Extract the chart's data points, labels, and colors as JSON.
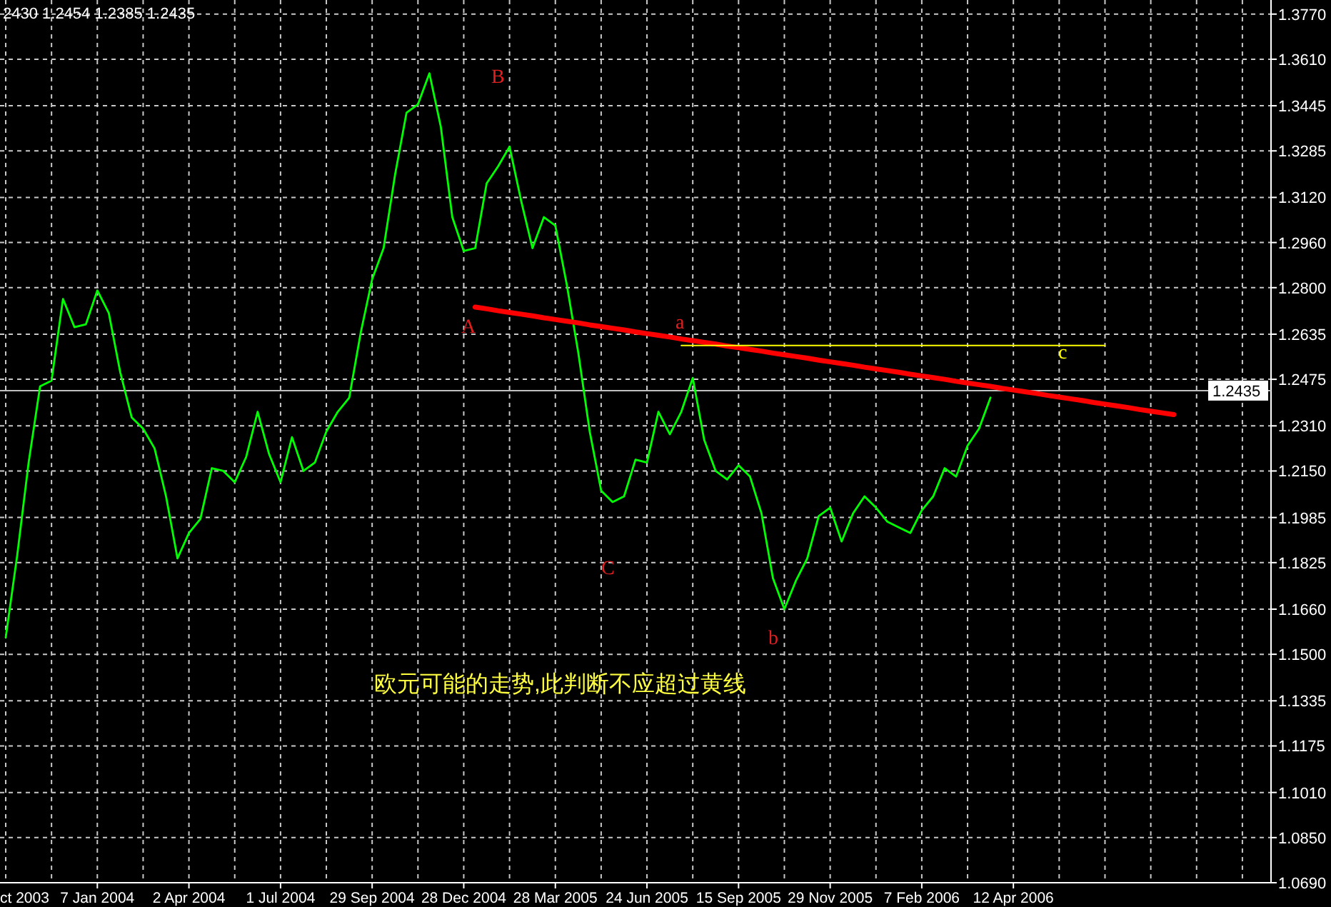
{
  "chart_data": {
    "type": "line",
    "annotations": [
      "2430 1.2454 1.2385 1.2435",
      "欧元可能的走势,此判断不应超过黄线",
      "ct 2003",
      "A",
      "B",
      "C",
      "a",
      "b",
      "c"
    ],
    "categories": [
      null,
      null,
      null,
      null,
      null,
      null,
      null,
      null,
      "7 Jan 2004",
      null,
      null,
      null,
      null,
      null,
      null,
      null,
      "2 Apr 2004",
      null,
      null,
      null,
      null,
      null,
      null,
      null,
      "1 Jul 2004",
      null,
      null,
      null,
      null,
      null,
      null,
      null,
      "29 Sep 2004",
      null,
      null,
      null,
      null,
      null,
      null,
      null,
      "28 Dec 2004",
      null,
      null,
      null,
      null,
      null,
      null,
      null,
      "28 Mar 2005",
      null,
      null,
      null,
      null,
      null,
      null,
      null,
      "24 Jun 2005",
      null,
      null,
      null,
      null,
      null,
      null,
      null,
      "15 Sep 2005",
      null,
      null,
      null,
      null,
      null,
      null,
      null,
      "29 Nov 2005",
      null,
      null,
      null,
      null,
      null,
      null,
      null,
      "7 Feb 2006",
      null,
      null,
      null,
      null,
      null,
      null,
      null,
      "12 Apr 2006",
      null,
      null,
      null,
      null,
      null,
      null,
      null,
      null,
      null,
      null,
      null,
      null,
      null,
      null,
      null,
      null,
      null,
      null,
      null,
      null,
      null,
      null
    ],
    "series": [
      {
        "color": "#00ff00",
        "values": [
          1.156,
          1.185,
          1.218,
          1.245,
          1.247,
          1.276,
          1.266,
          1.267,
          1.279,
          1.271,
          1.25,
          1.234,
          1.23,
          1.223,
          1.206,
          1.184,
          1.193,
          1.198,
          1.216,
          1.215,
          1.211,
          1.22,
          1.236,
          1.221,
          1.211,
          1.227,
          1.215,
          1.218,
          1.229,
          1.236,
          1.241,
          1.264,
          1.283,
          1.294,
          1.32,
          1.342,
          1.345,
          1.356,
          1.337,
          1.305,
          1.293,
          1.294,
          1.317,
          1.323,
          1.33,
          1.311,
          1.294,
          1.305,
          1.302,
          1.281,
          1.257,
          1.229,
          1.208,
          1.204,
          1.206,
          1.219,
          1.218,
          1.236,
          1.228,
          1.236,
          1.248,
          1.226,
          1.215,
          1.212,
          1.217,
          1.213,
          1.2,
          1.177,
          1.166,
          1.176,
          1.184,
          1.199,
          1.202,
          1.19,
          1.2,
          1.206,
          1.202,
          1.197,
          1.195,
          1.193,
          1.201,
          1.206,
          1.216,
          1.213,
          1.224,
          1.23,
          1.241,
          null,
          null,
          null,
          null,
          null,
          null,
          null,
          null,
          null,
          null,
          null,
          null,
          null,
          null,
          null,
          null,
          null,
          null,
          null,
          null,
          null,
          null,
          null,
          null
        ]
      },
      {
        "color": "#ff0000",
        "values": [
          null,
          null,
          null,
          null,
          null,
          null,
          null,
          null,
          null,
          null,
          null,
          null,
          null,
          null,
          null,
          null,
          null,
          null,
          null,
          null,
          null,
          null,
          null,
          null,
          null,
          null,
          null,
          null,
          null,
          null,
          null,
          null,
          null,
          null,
          null,
          null,
          null,
          null,
          null,
          null,
          null,
          1.2731,
          1.2725,
          1.2718,
          1.2712,
          1.2706,
          1.27,
          1.2693,
          1.2687,
          1.2681,
          1.2675,
          1.2668,
          1.2662,
          1.2656,
          1.265,
          1.2643,
          1.2637,
          1.2631,
          1.2625,
          1.2618,
          1.2612,
          1.2606,
          1.26,
          1.2593,
          1.2587,
          1.2581,
          1.2575,
          1.2568,
          1.2562,
          1.2556,
          1.255,
          1.2543,
          1.2537,
          1.2531,
          1.2525,
          1.2518,
          1.2512,
          1.2506,
          1.25,
          1.2493,
          1.2487,
          1.2481,
          1.2475,
          1.2468,
          1.2462,
          1.2456,
          1.245,
          1.2443,
          1.2437,
          1.2431,
          1.2425,
          1.2418,
          1.2412,
          1.2406,
          1.24,
          1.2393,
          1.2387,
          1.2381,
          1.2375,
          1.2368,
          1.2362,
          1.2356,
          1.235,
          null,
          null,
          null,
          null,
          null,
          null,
          null,
          null
        ]
      },
      {
        "color": "#ffff00",
        "values": [
          null,
          null,
          null,
          null,
          null,
          null,
          null,
          null,
          null,
          null,
          null,
          null,
          null,
          null,
          null,
          null,
          null,
          null,
          null,
          null,
          null,
          null,
          null,
          null,
          null,
          null,
          null,
          null,
          null,
          null,
          null,
          null,
          null,
          null,
          null,
          null,
          null,
          null,
          null,
          null,
          null,
          null,
          null,
          null,
          null,
          null,
          null,
          null,
          null,
          null,
          null,
          null,
          null,
          null,
          null,
          null,
          null,
          null,
          null,
          1.2595,
          1.2595,
          1.2595,
          1.2595,
          1.2595,
          1.2595,
          1.2595,
          1.2595,
          1.2595,
          1.2595,
          1.2595,
          1.2595,
          1.2595,
          1.2595,
          1.2595,
          1.2595,
          1.2595,
          1.2595,
          1.2595,
          1.2595,
          1.2595,
          1.2595,
          1.2595,
          1.2595,
          1.2595,
          1.2595,
          1.2595,
          1.2595,
          1.2595,
          1.2595,
          1.2595,
          1.2595,
          1.2595,
          1.2595,
          1.2595,
          1.2595,
          1.2595,
          1.2595,
          null,
          null,
          null,
          null,
          null,
          null,
          null,
          null,
          null,
          null,
          null,
          null,
          null,
          null
        ]
      }
    ],
    "ref_lines": [
      {
        "axis": "y",
        "value": 1.2435,
        "label": "1.2435",
        "color": "#c0c0c0"
      }
    ],
    "ylim": [
      1.069,
      1.382
    ],
    "yticks": [
      {
        "value": 1.377,
        "label": "1.3770"
      },
      {
        "value": 1.361,
        "label": "1.3610"
      },
      1.3445,
      1.3285,
      {
        "value": 1.312,
        "label": "1.3120"
      },
      {
        "value": 1.296,
        "label": "1.2960"
      },
      {
        "value": 1.28,
        "label": "1.2800"
      },
      1.2635,
      1.2475,
      {
        "value": 1.231,
        "label": "1.2310"
      },
      {
        "value": 1.215,
        "label": "1.2150"
      },
      1.1985,
      1.1825,
      {
        "value": 1.166,
        "label": "1.1660"
      },
      {
        "value": 1.15,
        "label": "1.1500"
      },
      1.1335,
      1.1175,
      {
        "value": 1.101,
        "label": "1.1010"
      },
      {
        "value": 1.085,
        "label": "1.0850"
      },
      {
        "value": 1.069,
        "label": "1.0690"
      }
    ],
    "grid": true,
    "line_style": "solid",
    "marker": "none"
  }
}
